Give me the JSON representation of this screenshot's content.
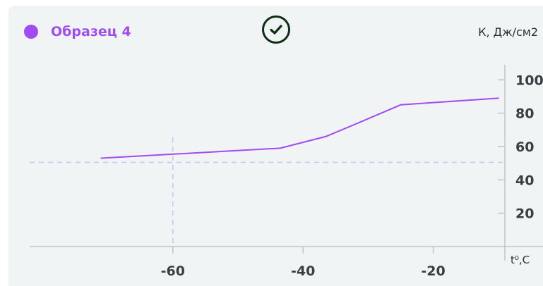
{
  "legend": {
    "label": "Образец 4"
  },
  "units": {
    "y": "К, Дж/см2",
    "x": "t⁰,С"
  },
  "colors": {
    "series": "#a24bf3",
    "check": "#0f2e14",
    "axis": "#bfc3c7",
    "guide": "#c7c3f3"
  },
  "icons": {
    "status": "check-circle-icon"
  },
  "chart_data": {
    "type": "line",
    "x_ticks": [
      -60,
      -40,
      -20
    ],
    "y_ticks": [
      20,
      40,
      60,
      80,
      100
    ],
    "xlim": [
      -82,
      -9
    ],
    "ylim": [
      0,
      109
    ],
    "series": [
      {
        "x": [
          -71,
          -43.5,
          -36.5,
          -31,
          -25,
          -10
        ],
        "y": [
          53,
          59,
          66,
          75,
          85,
          89
        ]
      }
    ],
    "guides": {
      "y": 50.5,
      "x": -60
    }
  }
}
